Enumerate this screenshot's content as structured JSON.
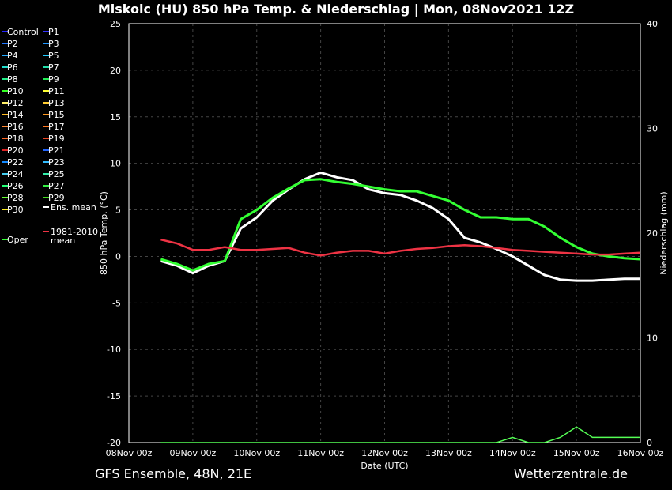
{
  "title": "Miskolc  (HU)  850 hPa Temp. & Niederschlag | Mon, 08Nov2021 12Z",
  "footer": {
    "left": "GFS Ensemble, 48N, 21E",
    "right": "Wetterzentrale.de"
  },
  "chart_data": {
    "type": "line",
    "xlabel": "Date (UTC)",
    "ylabel": "850 hPa Temp. (°C)",
    "y2label": "Niederschlag (mm)",
    "x_ticks": [
      "08Nov 00z",
      "09Nov 00z",
      "10Nov 00z",
      "11Nov 00z",
      "12Nov 00z",
      "13Nov 00z",
      "14Nov 00z",
      "15Nov 00z",
      "16Nov 00z"
    ],
    "y_ticks": [
      25,
      20,
      15,
      10,
      5,
      0,
      -5,
      -10,
      -15,
      -20
    ],
    "y2_ticks": [
      40,
      30,
      20,
      10,
      0
    ],
    "ylim": [
      -20,
      25
    ],
    "y2lim": [
      0,
      40
    ],
    "x_hours": [
      12,
      18,
      24,
      30,
      36,
      42,
      48,
      54,
      60,
      66,
      72,
      78,
      84,
      90,
      96,
      102,
      108,
      114,
      120,
      126,
      132,
      138,
      144,
      150,
      156,
      162,
      168,
      174,
      180,
      186,
      192
    ],
    "members": [
      "Control",
      "P1",
      "P2",
      "P3",
      "P4",
      "P5",
      "P6",
      "P7",
      "P8",
      "P9",
      "P10",
      "P11",
      "P12",
      "P13",
      "P14",
      "P15",
      "P16",
      "P17",
      "P18",
      "P19",
      "P20",
      "P21",
      "P22",
      "P23",
      "P24",
      "P25",
      "P26",
      "P27",
      "P28",
      "P29",
      "P30"
    ],
    "member_colors": [
      "#2222ff",
      "#3333ff",
      "#2277ff",
      "#2299ff",
      "#22aaff",
      "#22ccff",
      "#22ddcc",
      "#22ddaa",
      "#22ee88",
      "#22ee55",
      "#33ff22",
      "#ffff33",
      "#ffee66",
      "#ffcc33",
      "#ffbb22",
      "#ff9922",
      "#ff8833",
      "#ff7722",
      "#ff6622",
      "#ee4422",
      "#dd2222",
      "#2266ff",
      "#1188ff",
      "#33bbff",
      "#44ccee",
      "#33eeaa",
      "#22ff77",
      "#33ee44",
      "#66ff33",
      "#44dd22",
      "#ffee22"
    ],
    "series": [
      {
        "name": "Ens. mean",
        "color": "#ffffff",
        "values": [
          -0.5,
          -1,
          -1.8,
          -1,
          -0.5,
          3,
          4.2,
          6,
          7.2,
          8.3,
          9,
          8.5,
          8.2,
          7.2,
          6.8,
          6.6,
          6,
          5.2,
          4,
          2,
          1.5,
          0.8,
          0,
          -1,
          -2,
          -2.5,
          -2.6,
          -2.6,
          -2.5,
          -2.4,
          -2.4
        ]
      },
      {
        "name": "Oper",
        "color": "#33ff33",
        "values": [
          -0.3,
          -0.8,
          -1.5,
          -0.8,
          -0.5,
          4,
          5,
          6.3,
          7.3,
          8.2,
          8.3,
          8,
          7.8,
          7.5,
          7.2,
          7,
          7,
          6.5,
          6,
          5,
          4.2,
          4.2,
          4,
          4,
          3.2,
          2,
          1,
          0.3,
          0,
          -0.2,
          -0.3
        ]
      },
      {
        "name": "1981-2010 mean",
        "color": "#ee3344",
        "values": [
          1.8,
          1.4,
          0.7,
          0.7,
          1,
          0.7,
          0.7,
          0.8,
          0.9,
          0.4,
          0.1,
          0.4,
          0.6,
          0.6,
          0.3,
          0.6,
          0.8,
          0.9,
          1.1,
          1.2,
          1.1,
          0.9,
          0.7,
          0.6,
          0.5,
          0.4,
          0.3,
          0.2,
          0.2,
          0.3,
          0.4
        ]
      }
    ],
    "precip_mm": [
      0,
      0,
      0,
      0,
      0,
      0,
      0,
      0,
      0,
      0,
      0,
      0,
      0,
      0,
      0,
      0,
      0,
      0,
      0,
      0,
      0,
      0,
      0.5,
      0,
      0,
      0.5,
      1.5,
      0.5,
      0.5,
      0.5,
      0.5
    ]
  }
}
